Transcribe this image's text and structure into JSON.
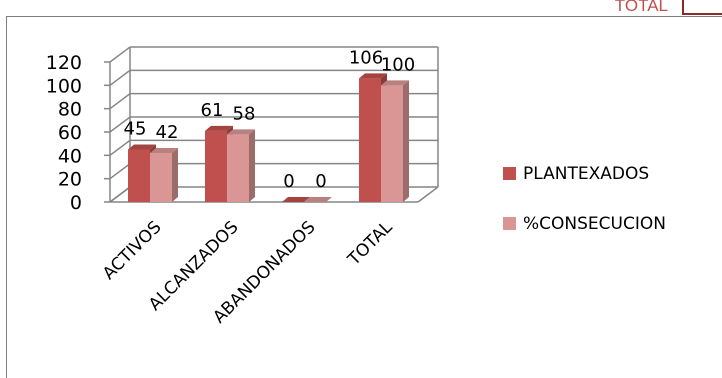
{
  "header": {
    "corner_label": "TOTAL"
  },
  "chart_data": {
    "type": "bar",
    "categories": [
      "ACTIVOS",
      "ALCANZADOS",
      "ABANDONADOS",
      "TOTAL"
    ],
    "series": [
      {
        "name": "PLANTEXADOS",
        "values": [
          45,
          61,
          0,
          106
        ]
      },
      {
        "name": "%CONSECUCION",
        "values": [
          42,
          58,
          0,
          100
        ]
      }
    ],
    "ylim": [
      0,
      120
    ],
    "yticks": [
      0,
      20,
      40,
      60,
      80,
      100,
      120
    ],
    "grid": true,
    "legend_position": "right",
    "three_d": true,
    "colors": {
      "PLANTEXADOS": "#c0504d",
      "%CONSECUCION": "#d99694"
    }
  }
}
